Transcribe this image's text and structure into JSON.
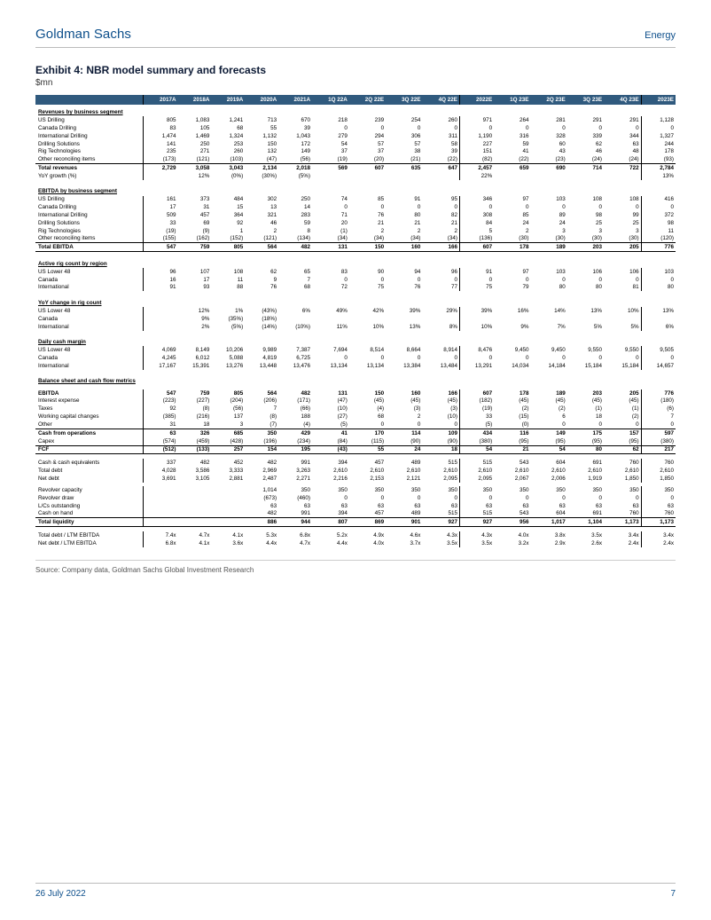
{
  "header": {
    "brand": "Goldman Sachs",
    "sector": "Energy"
  },
  "exhibit": {
    "title": "Exhibit 4: NBR model summary and forecasts",
    "subtitle": "$mn"
  },
  "source": "Source: Company data, Goldman Sachs Global Investment Research",
  "footer": {
    "date": "26 July 2022",
    "page": "7"
  },
  "colors": {
    "header_bg": "#305a7e",
    "header_fg": "#ffffff",
    "brand": "#0d4f8b",
    "title": "#0d1b36"
  },
  "columns": [
    "",
    "2017A",
    "2018A",
    "2019A",
    "2020A",
    "2021A",
    "1Q 22A",
    "2Q 22E",
    "3Q 22E",
    "4Q 22E",
    "2022E",
    "1Q 23E",
    "2Q 23E",
    "3Q 23E",
    "4Q 23E",
    "2023E"
  ],
  "sections": [
    {
      "type": "header",
      "label": "Revenues by business segment"
    },
    {
      "label": "US Drilling",
      "v": [
        "805",
        "1,083",
        "1,241",
        "713",
        "670",
        "218",
        "239",
        "254",
        "260",
        "971",
        "264",
        "281",
        "291",
        "291",
        "1,128"
      ]
    },
    {
      "label": "Canada Drilling",
      "v": [
        "83",
        "105",
        "68",
        "55",
        "39",
        "0",
        "0",
        "0",
        "0",
        "0",
        "0",
        "0",
        "0",
        "0",
        "0"
      ]
    },
    {
      "label": "International Drilling",
      "v": [
        "1,474",
        "1,469",
        "1,324",
        "1,132",
        "1,043",
        "279",
        "294",
        "306",
        "311",
        "1,190",
        "316",
        "328",
        "339",
        "344",
        "1,327"
      ]
    },
    {
      "label": "Drilling Solutions",
      "v": [
        "141",
        "250",
        "253",
        "150",
        "172",
        "54",
        "57",
        "57",
        "58",
        "227",
        "59",
        "60",
        "62",
        "63",
        "244"
      ]
    },
    {
      "label": "Rig Technologies",
      "v": [
        "235",
        "271",
        "260",
        "132",
        "149",
        "37",
        "37",
        "38",
        "39",
        "151",
        "41",
        "43",
        "46",
        "48",
        "178"
      ]
    },
    {
      "label": "Other reconciling items",
      "v": [
        "(173)",
        "(121)",
        "(103)",
        "(47)",
        "(56)",
        "(19)",
        "(20)",
        "(21)",
        "(22)",
        "(82)",
        "(22)",
        "(23)",
        "(24)",
        "(24)",
        "(93)"
      ]
    },
    {
      "type": "total",
      "label": "Total revenues",
      "v": [
        "2,729",
        "3,058",
        "3,043",
        "2,134",
        "2,018",
        "569",
        "607",
        "635",
        "647",
        "2,457",
        "659",
        "690",
        "714",
        "722",
        "2,784"
      ]
    },
    {
      "label": "YoY growth (%)",
      "v": [
        "",
        "12%",
        "(0%)",
        "(30%)",
        "(5%)",
        "",
        "",
        "",
        "",
        "22%",
        "",
        "",
        "",
        "",
        "13%"
      ]
    },
    {
      "type": "spacer"
    },
    {
      "type": "header",
      "label": "EBITDA by business segment"
    },
    {
      "label": "US Drilling",
      "v": [
        "161",
        "373",
        "484",
        "302",
        "250",
        "74",
        "85",
        "91",
        "95",
        "346",
        "97",
        "103",
        "108",
        "108",
        "416"
      ]
    },
    {
      "label": "Canada Drilling",
      "v": [
        "17",
        "31",
        "15",
        "13",
        "14",
        "0",
        "0",
        "0",
        "0",
        "0",
        "0",
        "0",
        "0",
        "0",
        "0"
      ]
    },
    {
      "label": "International Drilling",
      "v": [
        "509",
        "457",
        "364",
        "321",
        "283",
        "71",
        "76",
        "80",
        "82",
        "308",
        "85",
        "89",
        "98",
        "99",
        "372"
      ]
    },
    {
      "label": "Drilling Solutions",
      "v": [
        "33",
        "69",
        "92",
        "46",
        "59",
        "20",
        "21",
        "21",
        "21",
        "84",
        "24",
        "24",
        "25",
        "25",
        "98"
      ]
    },
    {
      "label": "Rig Technologies",
      "v": [
        "(19)",
        "(9)",
        "1",
        "2",
        "8",
        "(1)",
        "2",
        "2",
        "2",
        "5",
        "2",
        "3",
        "3",
        "3",
        "11"
      ]
    },
    {
      "label": "Other reconciling items",
      "v": [
        "(155)",
        "(162)",
        "(152)",
        "(121)",
        "(134)",
        "(34)",
        "(34)",
        "(34)",
        "(34)",
        "(136)",
        "(30)",
        "(30)",
        "(30)",
        "(30)",
        "(120)"
      ]
    },
    {
      "type": "total-bb",
      "label": "Total EBITDA",
      "v": [
        "547",
        "759",
        "805",
        "564",
        "482",
        "131",
        "150",
        "160",
        "166",
        "607",
        "178",
        "189",
        "203",
        "205",
        "776"
      ]
    },
    {
      "type": "spacer"
    },
    {
      "type": "header",
      "label": "Active rig count by region"
    },
    {
      "label": "US Lower 48",
      "v": [
        "96",
        "107",
        "108",
        "62",
        "65",
        "83",
        "90",
        "94",
        "96",
        "91",
        "97",
        "103",
        "106",
        "106",
        "103"
      ]
    },
    {
      "label": "Canada",
      "v": [
        "16",
        "17",
        "11",
        "9",
        "7",
        "0",
        "0",
        "0",
        "0",
        "0",
        "0",
        "0",
        "0",
        "0",
        "0"
      ]
    },
    {
      "label": "International",
      "v": [
        "91",
        "93",
        "88",
        "76",
        "68",
        "72",
        "75",
        "76",
        "77",
        "75",
        "79",
        "80",
        "80",
        "81",
        "80"
      ]
    },
    {
      "type": "spacer"
    },
    {
      "type": "header",
      "label": "YoY change in rig count"
    },
    {
      "label": "US Lower 48",
      "v": [
        "",
        "12%",
        "1%",
        "(43%)",
        "6%",
        "49%",
        "42%",
        "39%",
        "29%",
        "39%",
        "16%",
        "14%",
        "13%",
        "10%",
        "13%"
      ]
    },
    {
      "label": "Canada",
      "v": [
        "",
        "9%",
        "(35%)",
        "(18%)",
        "",
        "",
        "",
        "",
        "",
        "",
        "",
        "",
        "",
        "",
        ""
      ]
    },
    {
      "label": "International",
      "v": [
        "",
        "2%",
        "(5%)",
        "(14%)",
        "(10%)",
        "11%",
        "10%",
        "13%",
        "8%",
        "10%",
        "9%",
        "7%",
        "5%",
        "5%",
        "6%"
      ]
    },
    {
      "type": "spacer"
    },
    {
      "type": "header",
      "label": "Daily cash margin"
    },
    {
      "label": "US Lower 48",
      "v": [
        "4,069",
        "8,149",
        "10,206",
        "9,989",
        "7,387",
        "7,694",
        "8,514",
        "8,664",
        "8,914",
        "8,476",
        "9,450",
        "9,450",
        "9,550",
        "9,550",
        "9,505"
      ]
    },
    {
      "label": "Canada",
      "v": [
        "4,245",
        "6,012",
        "5,088",
        "4,819",
        "6,725",
        "0",
        "0",
        "0",
        "0",
        "0",
        "0",
        "0",
        "0",
        "0",
        "0"
      ]
    },
    {
      "label": "International",
      "v": [
        "17,167",
        "15,391",
        "13,276",
        "13,448",
        "13,476",
        "13,134",
        "13,134",
        "13,384",
        "13,484",
        "13,291",
        "14,034",
        "14,184",
        "15,184",
        "15,184",
        "14,657"
      ]
    },
    {
      "type": "spacer"
    },
    {
      "type": "header",
      "label": "Balance sheet and cash flow metrics"
    },
    {
      "type": "spacer"
    },
    {
      "label": "EBITDA",
      "bold": true,
      "v": [
        "547",
        "759",
        "805",
        "564",
        "482",
        "131",
        "150",
        "160",
        "166",
        "607",
        "178",
        "189",
        "203",
        "205",
        "776"
      ]
    },
    {
      "label": "Interest expense",
      "v": [
        "(223)",
        "(227)",
        "(204)",
        "(206)",
        "(171)",
        "(47)",
        "(45)",
        "(45)",
        "(45)",
        "(182)",
        "(45)",
        "(45)",
        "(45)",
        "(45)",
        "(180)"
      ]
    },
    {
      "label": "Taxes",
      "v": [
        "92",
        "(8)",
        "(56)",
        "7",
        "(66)",
        "(10)",
        "(4)",
        "(3)",
        "(3)",
        "(19)",
        "(2)",
        "(2)",
        "(1)",
        "(1)",
        "(6)"
      ]
    },
    {
      "label": "Working capital changes",
      "v": [
        "(385)",
        "(216)",
        "137",
        "(8)",
        "188",
        "(27)",
        "68",
        "2",
        "(10)",
        "33",
        "(15)",
        "6",
        "18",
        "(2)",
        "7"
      ]
    },
    {
      "label": "Other",
      "v": [
        "31",
        "18",
        "3",
        "(7)",
        "(4)",
        "(5)",
        "0",
        "0",
        "0",
        "(5)",
        "(0)",
        "0",
        "0",
        "0",
        "0"
      ]
    },
    {
      "type": "total",
      "label": "Cash from operations",
      "v": [
        "63",
        "326",
        "685",
        "350",
        "429",
        "41",
        "170",
        "114",
        "109",
        "434",
        "116",
        "149",
        "175",
        "157",
        "597"
      ]
    },
    {
      "label": "Capex",
      "v": [
        "(574)",
        "(459)",
        "(428)",
        "(196)",
        "(234)",
        "(84)",
        "(115)",
        "(90)",
        "(90)",
        "(380)",
        "(95)",
        "(95)",
        "(95)",
        "(95)",
        "(380)"
      ]
    },
    {
      "type": "total-bb",
      "label": "FCF",
      "v": [
        "(512)",
        "(133)",
        "257",
        "154",
        "195",
        "(43)",
        "55",
        "24",
        "18",
        "54",
        "21",
        "54",
        "80",
        "62",
        "217"
      ]
    },
    {
      "type": "spacer"
    },
    {
      "label": "Cash & cash equivalents",
      "v": [
        "337",
        "482",
        "452",
        "482",
        "991",
        "394",
        "457",
        "489",
        "515",
        "515",
        "543",
        "604",
        "691",
        "760",
        "760"
      ]
    },
    {
      "label": "Total debt",
      "v": [
        "4,028",
        "3,586",
        "3,333",
        "2,969",
        "3,263",
        "2,610",
        "2,610",
        "2,610",
        "2,610",
        "2,610",
        "2,610",
        "2,610",
        "2,610",
        "2,610",
        "2,610"
      ]
    },
    {
      "label": "Net debt",
      "v": [
        "3,691",
        "3,105",
        "2,881",
        "2,487",
        "2,271",
        "2,216",
        "2,153",
        "2,121",
        "2,095",
        "2,095",
        "2,067",
        "2,006",
        "1,919",
        "1,850",
        "1,850"
      ]
    },
    {
      "type": "spacer"
    },
    {
      "label": "Revolver capacity",
      "v": [
        "",
        "",
        "",
        "1,014",
        "350",
        "350",
        "350",
        "350",
        "350",
        "350",
        "350",
        "350",
        "350",
        "350",
        "350"
      ]
    },
    {
      "label": "Revolver draw",
      "v": [
        "",
        "",
        "",
        "(673)",
        "(460)",
        "0",
        "0",
        "0",
        "0",
        "0",
        "0",
        "0",
        "0",
        "0",
        "0"
      ]
    },
    {
      "label": "L/Cs outstanding",
      "v": [
        "",
        "",
        "",
        "63",
        "63",
        "63",
        "63",
        "63",
        "63",
        "63",
        "63",
        "63",
        "63",
        "63",
        "63"
      ]
    },
    {
      "label": "Cash on hand",
      "v": [
        "",
        "",
        "",
        "482",
        "991",
        "394",
        "457",
        "489",
        "515",
        "515",
        "543",
        "604",
        "691",
        "760",
        "760"
      ]
    },
    {
      "type": "total-bb",
      "label": "Total liquidity",
      "v": [
        "",
        "",
        "",
        "886",
        "944",
        "807",
        "869",
        "901",
        "927",
        "927",
        "956",
        "1,017",
        "1,104",
        "1,173",
        "1,173"
      ]
    },
    {
      "type": "spacer"
    },
    {
      "label": "Total debt / LTM EBITDA",
      "v": [
        "7.4x",
        "4.7x",
        "4.1x",
        "5.3x",
        "6.8x",
        "5.2x",
        "4.9x",
        "4.6x",
        "4.3x",
        "4.3x",
        "4.0x",
        "3.8x",
        "3.5x",
        "3.4x",
        "3.4x"
      ]
    },
    {
      "label": "Net debt / LTM EBITDA",
      "v": [
        "6.8x",
        "4.1x",
        "3.6x",
        "4.4x",
        "4.7x",
        "4.4x",
        "4.0x",
        "3.7x",
        "3.5x",
        "3.5x",
        "3.2x",
        "2.9x",
        "2.6x",
        "2.4x",
        "2.4x"
      ]
    }
  ]
}
